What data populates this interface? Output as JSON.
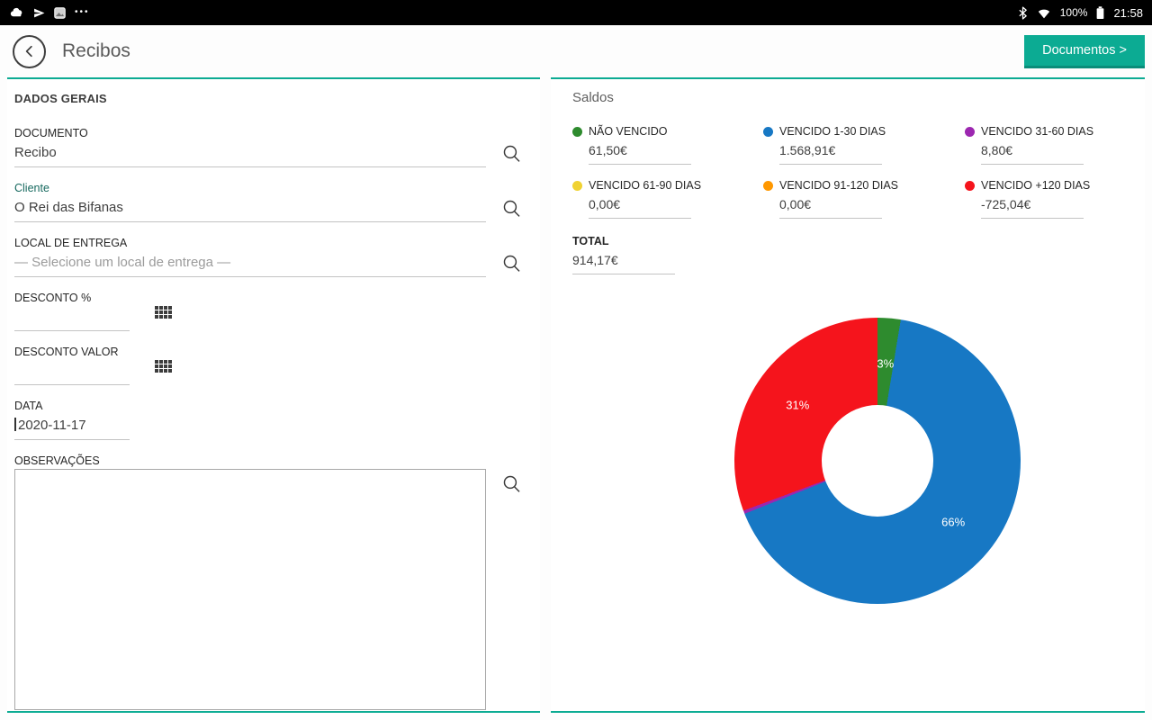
{
  "accent_color": "#0cab93",
  "status_bar": {
    "time": "21:58",
    "battery": "100%",
    "left_icons": [
      "cloud-icon",
      "location-icon",
      "screenshot-icon",
      "overflow-icon"
    ],
    "right_icons": [
      "bluetooth-icon",
      "wifi-icon",
      "battery-icon"
    ]
  },
  "header": {
    "title": "Recibos",
    "documents_button": "Documentos >"
  },
  "left_panel": {
    "title": "DADOS GERAIS",
    "documento": {
      "label": "DOCUMENTO",
      "value": "Recibo"
    },
    "cliente": {
      "label": "Cliente",
      "value": "O Rei das Bifanas"
    },
    "local_entrega": {
      "label": "LOCAL DE ENTREGA",
      "placeholder": "— Selecione um local de entrega —"
    },
    "desconto_pct": {
      "label": "DESCONTO %",
      "value": ""
    },
    "desconto_valor": {
      "label": "DESCONTO VALOR",
      "value": ""
    },
    "data_field": {
      "label": "DATA",
      "value": "2020-11-17"
    },
    "observacoes": {
      "label": "OBSERVAÇÕES",
      "value": ""
    }
  },
  "saldos": {
    "title": "Saldos",
    "items": [
      {
        "label": "NÃO VENCIDO",
        "value": "61,50€",
        "color": "#2e8b2e"
      },
      {
        "label": "VENCIDO 1-30 DIAS",
        "value": "1.568,91€",
        "color": "#1778c4"
      },
      {
        "label": "VENCIDO 31-60 DIAS",
        "value": "8,80€",
        "color": "#9c27b0"
      },
      {
        "label": "VENCIDO 61-90 DIAS",
        "value": "0,00€",
        "color": "#f0d232"
      },
      {
        "label": "VENCIDO 91-120 DIAS",
        "value": "0,00€",
        "color": "#ff9800"
      },
      {
        "label": "VENCIDO +120 DIAS",
        "value": "-725,04€",
        "color": "#f5141c"
      }
    ],
    "total": {
      "label": "TOTAL",
      "value": "914,17€"
    }
  },
  "chart_data": {
    "type": "pie",
    "donut": true,
    "title": "Saldos",
    "labels": [
      "NÃO VENCIDO",
      "VENCIDO 1-30 DIAS",
      "VENCIDO 31-60 DIAS",
      "VENCIDO 61-90 DIAS",
      "VENCIDO 91-120 DIAS",
      "VENCIDO +120 DIAS"
    ],
    "values": [
      61.5,
      1568.91,
      8.8,
      0.0,
      0.0,
      -725.04
    ],
    "colors": [
      "#2e8b2e",
      "#1778c4",
      "#9c27b0",
      "#f0d232",
      "#ff9800",
      "#f5141c"
    ],
    "percent_labels": [
      "3%",
      "66%",
      "",
      "",
      "",
      "31%"
    ],
    "total_value": 914.17,
    "legend_position": "top"
  }
}
